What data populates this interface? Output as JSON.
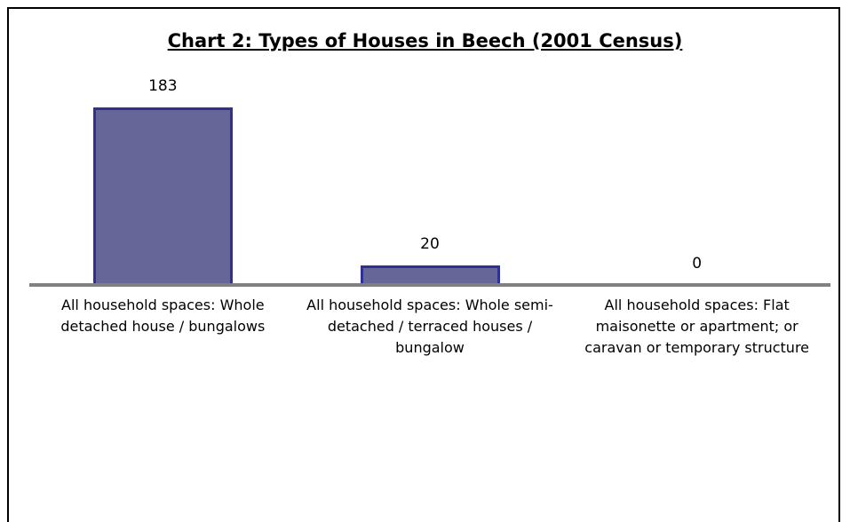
{
  "chart_data": {
    "type": "bar",
    "title": "Chart 2: Types of Houses in Beech (2001 Census)",
    "categories": [
      "All household spaces: Whole detached house / bungalows",
      "All household spaces: Whole semi-detached / terraced houses / bungalow",
      "All household spaces: Flat maisonette or apartment; or caravan or temporary structure"
    ],
    "values": [
      183,
      20,
      0
    ],
    "color": "#666699"
  }
}
